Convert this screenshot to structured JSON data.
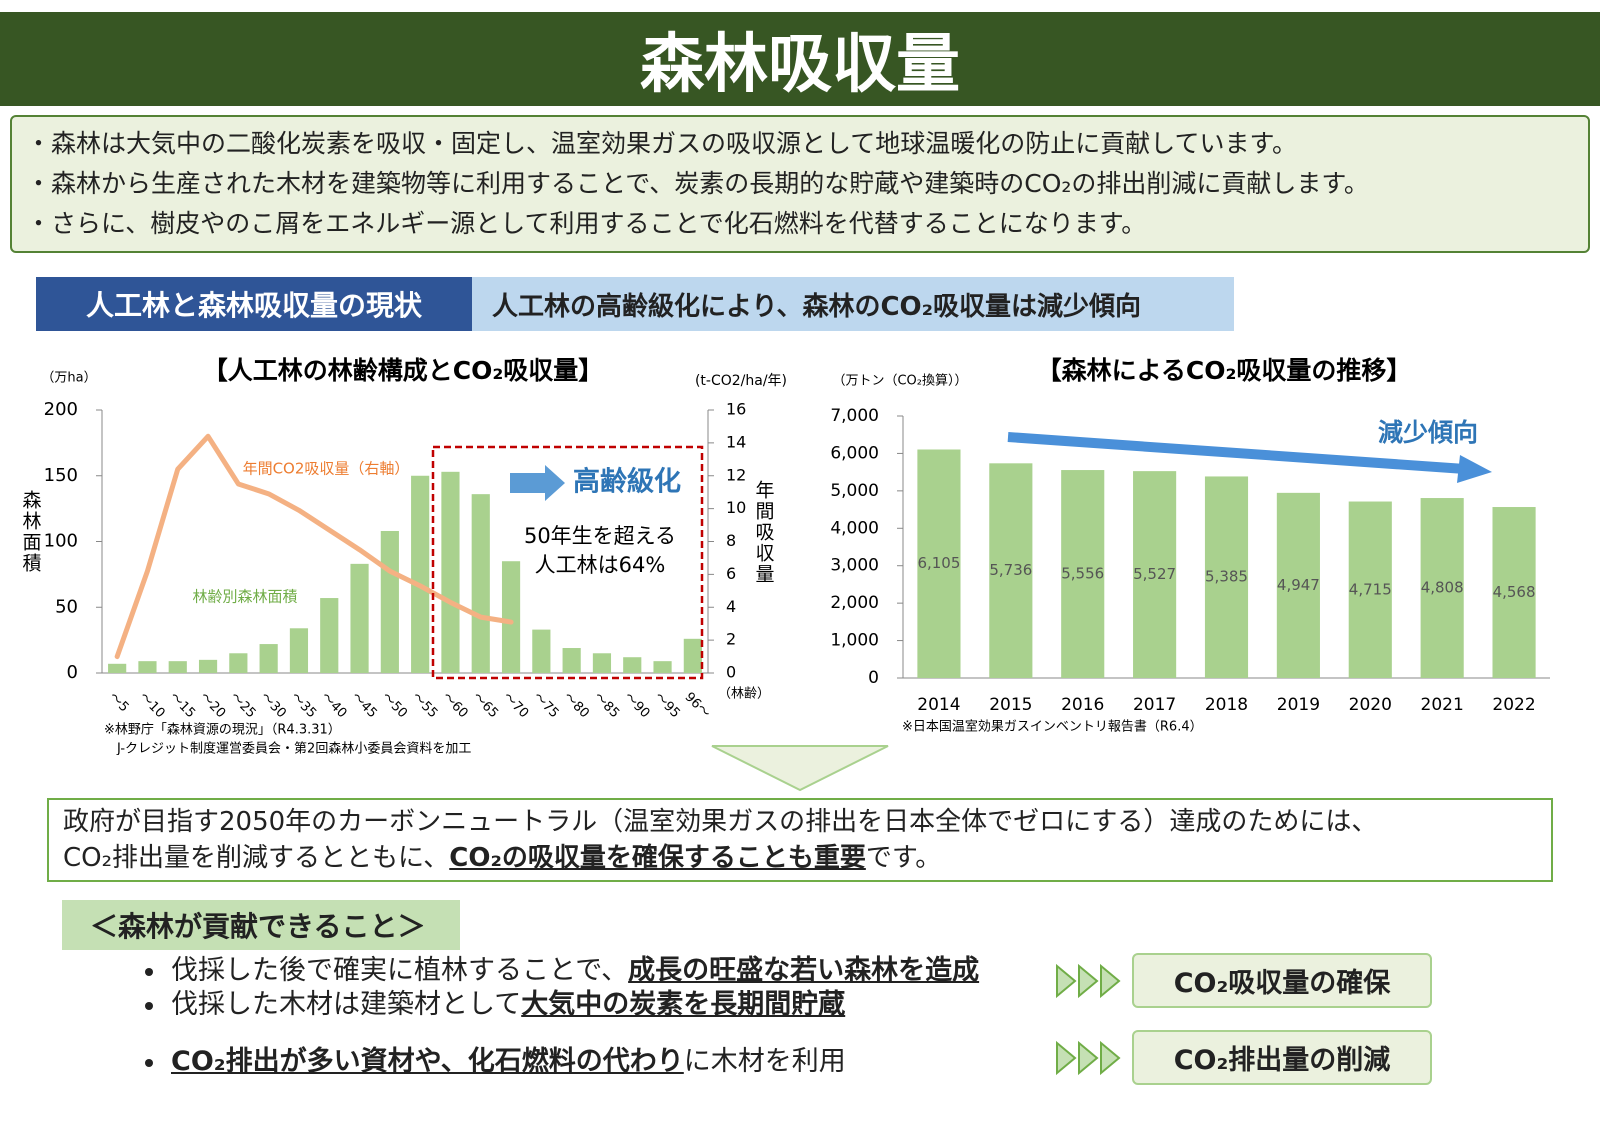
{
  "header": {
    "title": "森林吸収量"
  },
  "intro": [
    "・森林は大気中の二酸化炭素を吸収・固定し、温室効果ガスの吸収源として地球温暖化の防止に貢献しています。",
    "・森林から生産された木材を建築物等に利用することで、炭素の長期的な貯蔵や建築時のCO₂の排出削減に貢献します。",
    "・さらに、樹皮やのこ屑をエネルギー源として利用することで化石燃料を代替することになります。"
  ],
  "section": {
    "label": "人工林と森林吸収量の現状",
    "headline": "人工林の高齢級化により、森林のCO₂吸収量は減少傾向"
  },
  "chart_data": [
    {
      "type": "combo",
      "title": "【人工林の林齢構成とCO₂吸収量】",
      "y_unit": "（万ha）",
      "y_label": "森林面積",
      "y2_unit": "(t-CO2/ha/年)",
      "y2_label": "年間吸収量",
      "x_label": "（林齢）",
      "categories": [
        "～5",
        "～10",
        "～15",
        "～20",
        "～25",
        "～30",
        "～35",
        "～40",
        "～45",
        "～50",
        "～55",
        "～60",
        "～65",
        "～70",
        "～75",
        "～80",
        "～85",
        "～90",
        "～95",
        "96～"
      ],
      "series": [
        {
          "name": "林齢別森林面積",
          "type": "bar",
          "color": "#a9d18e",
          "values": [
            7,
            9,
            9,
            10,
            15,
            22,
            34,
            57,
            83,
            108,
            150,
            153,
            136,
            85,
            33,
            19,
            15,
            12,
            9,
            26
          ]
        },
        {
          "name": "年間CO2吸収量（右軸）",
          "type": "line",
          "axis": "y2",
          "color": "#f4b183",
          "values": [
            1,
            6.2,
            12.4,
            14.4,
            11.5,
            10.9,
            9.9,
            8.7,
            7.5,
            6.2,
            5.3,
            4.3,
            3.4,
            3.1,
            null,
            null,
            null,
            null,
            null,
            null
          ]
        }
      ],
      "ylim": [
        0,
        200
      ],
      "yticks": [
        0,
        50,
        100,
        150,
        200
      ],
      "y2lim": [
        0,
        16
      ],
      "y2ticks": [
        0,
        2,
        4,
        6,
        8,
        10,
        12,
        14,
        16
      ],
      "annotations": [
        "高齢級化",
        "50年生を超える",
        "人工林は64%"
      ],
      "source": [
        "※林野庁「森林資源の現況」（R4.3.31）",
        "J-クレジット制度運営委員会・第2回森林小委員会資料を加工"
      ]
    },
    {
      "type": "bar",
      "title": "【森林によるCO₂吸収量の推移】",
      "y_unit": "（万トン（CO₂換算））",
      "categories": [
        "2014",
        "2015",
        "2016",
        "2017",
        "2018",
        "2019",
        "2020",
        "2021",
        "2022"
      ],
      "values": [
        6105,
        5736,
        5556,
        5527,
        5385,
        4947,
        4715,
        4808,
        4568
      ],
      "value_labels": [
        "6,105",
        "5,736",
        "5,556",
        "5,527",
        "5,385",
        "4,947",
        "4,715",
        "4,808",
        "4,568"
      ],
      "color": "#a9d18e",
      "ylim": [
        0,
        7000
      ],
      "yticks": [
        0,
        {
          "value": 1000,
          "label": "1,000"
        },
        {
          "value": 2000,
          "label": "2,000"
        },
        {
          "value": 3000,
          "label": "3,000"
        },
        {
          "value": 4000,
          "label": "4,000"
        },
        {
          "value": 5000,
          "label": "5,000"
        },
        {
          "value": 6000,
          "label": "6,000"
        },
        {
          "value": 7000,
          "label": "7,000"
        }
      ],
      "annotations": [
        "減少傾向"
      ],
      "source": [
        "※日本国温室効果ガスインベントリ報告書（R6.4）"
      ]
    }
  ],
  "conclusion": [
    "政府が目指す2050年のカーボンニュートラル（温室効果ガスの排出を日本全体でゼロにする）達成のためには、",
    "CO₂排出量を削減するとともに、",
    "CO₂の吸収量を確保することも重要",
    "です。"
  ],
  "contributions": {
    "heading": "＜森林が貢献できること＞",
    "items": [
      [
        "伐採した後で確実に植林することで、",
        "成長の旺盛な若い森林を造成"
      ],
      [
        "伐採した木材は建築材として",
        "大気中の炭素を長期間貯蔵"
      ],
      [
        "CO₂排出が多い資材や、化石燃料の代わり",
        "に木材を利用"
      ]
    ],
    "outcomes": [
      "CO₂吸収量の確保",
      "CO₂排出量の削減"
    ]
  }
}
